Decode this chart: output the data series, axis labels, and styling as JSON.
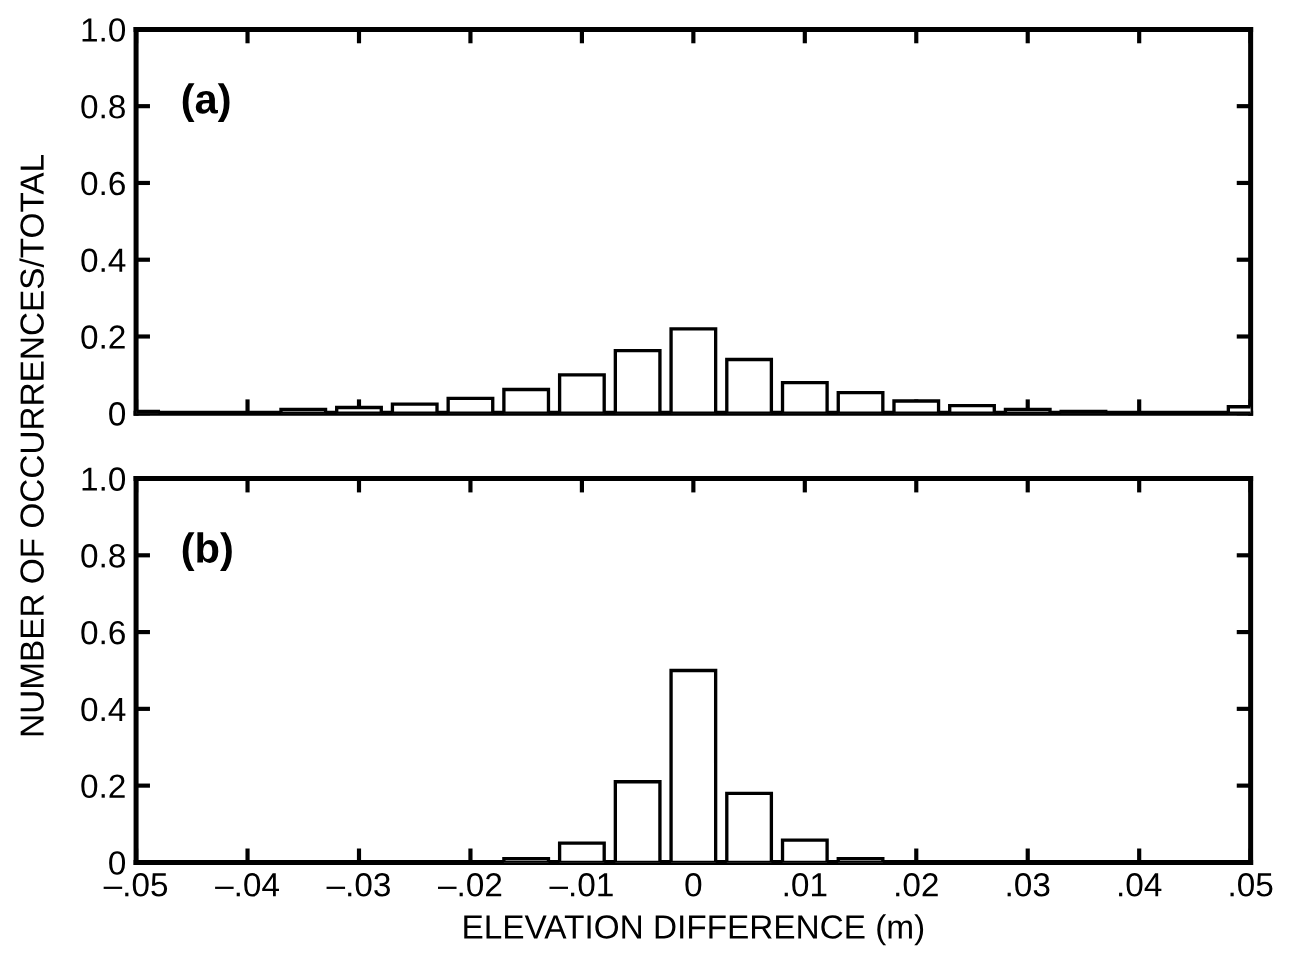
{
  "chart_data": [
    {
      "type": "bar",
      "ylabel": "NUMBER OF OCCURRENCES/TOTAL",
      "annotations": [
        "(a)"
      ],
      "tick_labels": "y",
      "x": [
        -0.05,
        -0.045,
        -0.04,
        -0.035,
        -0.03,
        -0.025,
        -0.02,
        -0.015,
        -0.01,
        -0.005,
        0,
        0.005,
        0.01,
        0.015,
        0.02,
        0.025,
        0.03,
        0.035,
        0.04,
        0.045,
        0.05
      ],
      "series": [
        {
          "color": "#ffffff",
          "values": [
            0.005,
            0,
            null,
            0.01,
            0.015,
            0.024,
            0.039,
            0.062,
            0.1,
            0.163,
            0.22,
            0.14,
            0.08,
            0.054,
            0.032,
            0.02,
            0.01,
            0.005,
            null,
            0,
            0.017
          ]
        }
      ],
      "xlim": [
        -0.05,
        0.05
      ],
      "xticks": [
        {
          "value": -0.05,
          "label": null
        },
        {
          "value": -0.04,
          "label": null
        },
        {
          "value": -0.03,
          "label": null
        },
        {
          "value": -0.02,
          "label": null
        },
        {
          "value": -0.01,
          "label": null
        },
        {
          "value": 0,
          "label": null
        },
        {
          "value": 0.01,
          "label": null
        },
        {
          "value": 0.02,
          "label": null
        },
        {
          "value": 0.03,
          "label": null
        },
        {
          "value": 0.04,
          "label": null
        },
        {
          "value": 0.05,
          "label": null
        }
      ],
      "ylim": [
        0,
        1.0
      ],
      "yticks": [
        0,
        0.2,
        0.4,
        0.6,
        0.8,
        {
          "value": 1.0,
          "label": "1.0"
        }
      ],
      "grid": false,
      "legend": false
    },
    {
      "type": "bar",
      "xlabel": "ELEVATION DIFFERENCE (m)",
      "annotations": [
        "(b)"
      ],
      "x": [
        -0.05,
        -0.045,
        -0.04,
        -0.035,
        -0.03,
        -0.025,
        -0.02,
        -0.015,
        -0.01,
        -0.005,
        0,
        0.005,
        0.01,
        0.015,
        0.02,
        0.025,
        0.03,
        0.035,
        0.04,
        0.045,
        0.05
      ],
      "series": [
        {
          "color": "#ffffff",
          "values": [
            0,
            0,
            0,
            0,
            0,
            0,
            0,
            0.01,
            0.05,
            0.21,
            0.5,
            0.18,
            0.058,
            0.01,
            0,
            0,
            0,
            0,
            0,
            0,
            0
          ]
        }
      ],
      "xlim": [
        -0.05,
        0.05
      ],
      "xticks": [
        {
          "value": -0.05,
          "label": "–.05"
        },
        {
          "value": -0.04,
          "label": "–.04"
        },
        {
          "value": -0.03,
          "label": "–.03"
        },
        {
          "value": -0.02,
          "label": "–.02"
        },
        {
          "value": -0.01,
          "label": "–.01"
        },
        0,
        {
          "value": 0.01,
          "label": ".01"
        },
        {
          "value": 0.02,
          "label": ".02"
        },
        {
          "value": 0.03,
          "label": ".03"
        },
        {
          "value": 0.04,
          "label": ".04"
        },
        {
          "value": 0.05,
          "label": ".05"
        }
      ],
      "ylim": [
        0,
        1.0
      ],
      "yticks": [
        0,
        0.2,
        0.4,
        0.6,
        0.8,
        {
          "value": 1.0,
          "label": "1.0"
        }
      ],
      "grid": false,
      "legend": false
    }
  ]
}
